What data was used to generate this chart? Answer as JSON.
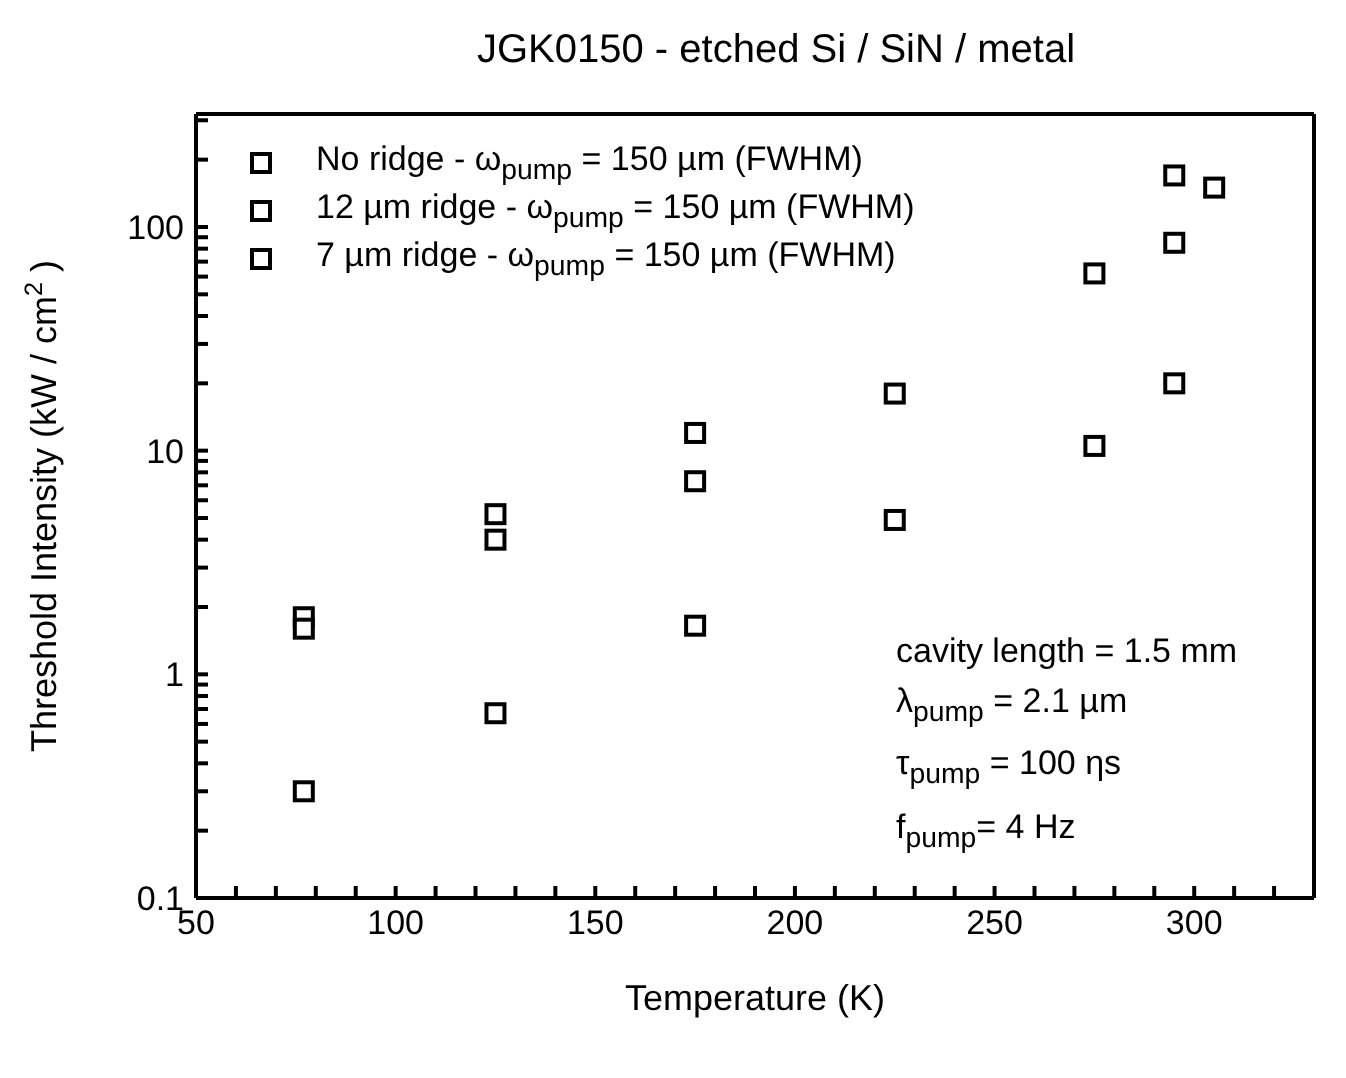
{
  "chart_data": {
    "type": "scatter",
    "title": "JGK0150 - etched Si / SiN / metal",
    "xlabel": "Temperature (K)",
    "ylabel": "Threshold Intensity (kW / cm$^{2}$)",
    "x": [
      77,
      125,
      175,
      225,
      275,
      295,
      305
    ],
    "series": [
      {
        "name": "No ridge - ω$_{pump}$ = 150 µm (FWHM)",
        "color": "#000000",
        "values": [
          1.8,
          5.2,
          12,
          18,
          62,
          170,
          null
        ]
      },
      {
        "name": "12 µm ridge - ω$_{pump}$ = 150 µm (FWHM)",
        "color": "#000000",
        "values": [
          1.6,
          4,
          7.3,
          null,
          null,
          85,
          150
        ]
      },
      {
        "name": "7 µm ridge - ω$_{pump}$ = 150 µm (FWHM)",
        "color": "#000000",
        "values": [
          0.3,
          0.67,
          1.65,
          4.9,
          10.5,
          20,
          null
        ]
      }
    ],
    "log": "y",
    "xlim": [
      50,
      330
    ],
    "ylim": [
      0.1,
      320
    ],
    "xticks": [
      50,
      {
        "value": 60,
        "label": null
      },
      {
        "value": 70,
        "label": null
      },
      {
        "value": 80,
        "label": null
      },
      {
        "value": 90,
        "label": null
      },
      100,
      {
        "value": 110,
        "label": null
      },
      {
        "value": 120,
        "label": null
      },
      {
        "value": 130,
        "label": null
      },
      {
        "value": 140,
        "label": null
      },
      150,
      {
        "value": 160,
        "label": null
      },
      {
        "value": 170,
        "label": null
      },
      {
        "value": 180,
        "label": null
      },
      {
        "value": 190,
        "label": null
      },
      200,
      {
        "value": 210,
        "label": null
      },
      {
        "value": 220,
        "label": null
      },
      {
        "value": 230,
        "label": null
      },
      {
        "value": 240,
        "label": null
      },
      250,
      {
        "value": 260,
        "label": null
      },
      {
        "value": 270,
        "label": null
      },
      {
        "value": 280,
        "label": null
      },
      {
        "value": 290,
        "label": null
      },
      300,
      {
        "value": 310,
        "label": null
      },
      {
        "value": 320,
        "label": null
      }
    ],
    "yticks": [
      0.1,
      {
        "value": 0.2,
        "label": null
      },
      {
        "value": 0.3,
        "label": null
      },
      {
        "value": 0.4,
        "label": null
      },
      {
        "value": 0.5,
        "label": null
      },
      {
        "value": 0.6,
        "label": null
      },
      {
        "value": 0.7,
        "label": null
      },
      {
        "value": 0.8,
        "label": null
      },
      {
        "value": 0.9,
        "label": null
      },
      1,
      {
        "value": 2,
        "label": null
      },
      {
        "value": 3,
        "label": null
      },
      {
        "value": 4,
        "label": null
      },
      {
        "value": 5,
        "label": null
      },
      {
        "value": 6,
        "label": null
      },
      {
        "value": 7,
        "label": null
      },
      {
        "value": 8,
        "label": null
      },
      {
        "value": 9,
        "label": null
      },
      10,
      {
        "value": 20,
        "label": null
      },
      {
        "value": 30,
        "label": null
      },
      {
        "value": 40,
        "label": null
      },
      {
        "value": 50,
        "label": null
      },
      {
        "value": 60,
        "label": null
      },
      {
        "value": 70,
        "label": null
      },
      {
        "value": 80,
        "label": null
      },
      {
        "value": 90,
        "label": null
      },
      100,
      {
        "value": 200,
        "label": null
      },
      {
        "value": 300,
        "label": null
      }
    ],
    "marker": "square",
    "legend": "top left",
    "grid": false,
    "annotations": [
      "cavity length = 1.5 mm",
      "λ$_{pump}$ = 2.1 µm",
      "τ$_{pump}$ = 100 ηs",
      "f$_{pump}$= 4 Hz"
    ]
  }
}
